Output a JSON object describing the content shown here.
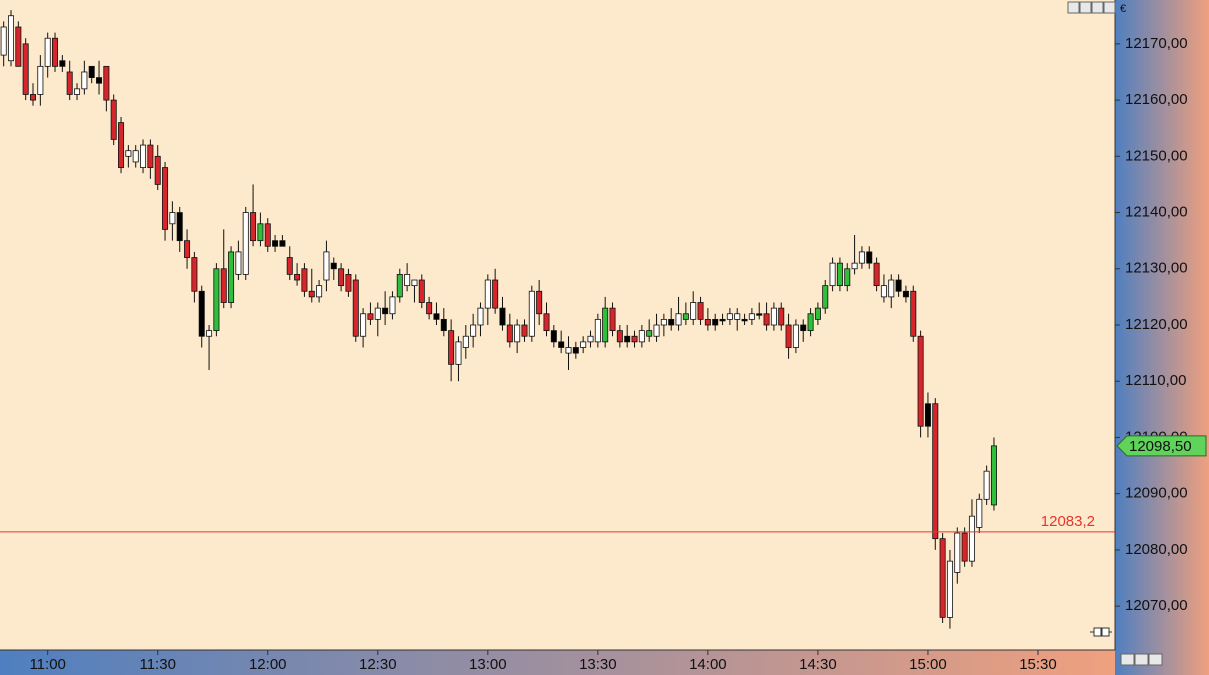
{
  "chart_data": {
    "type": "candlestick",
    "currency": "€",
    "x": [
      "10:48",
      "10:50",
      "10:52",
      "10:54",
      "10:56",
      "10:58",
      "11:00",
      "11:02",
      "11:04",
      "11:06",
      "11:08",
      "11:10",
      "11:12",
      "11:14",
      "11:16",
      "11:18",
      "11:20",
      "11:22",
      "11:24",
      "11:26",
      "11:28",
      "11:30",
      "11:32",
      "11:34",
      "11:36",
      "11:38",
      "11:40",
      "11:42",
      "11:44",
      "11:46",
      "11:48",
      "11:50",
      "11:52",
      "11:54",
      "11:56",
      "11:58",
      "12:00",
      "12:02",
      "12:04",
      "12:06",
      "12:08",
      "12:10",
      "12:12",
      "12:14",
      "12:16",
      "12:18",
      "12:20",
      "12:22",
      "12:24",
      "12:26",
      "12:28",
      "12:30",
      "12:32",
      "12:34",
      "12:36",
      "12:38",
      "12:40",
      "12:42",
      "12:44",
      "12:46",
      "12:48",
      "12:50",
      "12:52",
      "12:54",
      "12:56",
      "12:58",
      "13:00",
      "13:02",
      "13:04",
      "13:06",
      "13:08",
      "13:10",
      "13:12",
      "13:14",
      "13:16",
      "13:18",
      "13:20",
      "13:22",
      "13:24",
      "13:26",
      "13:28",
      "13:30",
      "13:32",
      "13:34",
      "13:36",
      "13:38",
      "13:40",
      "13:42",
      "13:44",
      "13:46",
      "13:48",
      "13:50",
      "13:52",
      "13:54",
      "13:56",
      "13:58",
      "14:00",
      "14:02",
      "14:04",
      "14:06",
      "14:08",
      "14:10",
      "14:12",
      "14:14",
      "14:16",
      "14:18",
      "14:20",
      "14:22",
      "14:24",
      "14:26",
      "14:28",
      "14:30",
      "14:32",
      "14:34",
      "14:36",
      "14:38",
      "14:40",
      "14:42",
      "14:44",
      "14:46",
      "14:48",
      "14:50",
      "14:52",
      "14:54",
      "14:56",
      "14:58",
      "15:00",
      "15:02",
      "15:04",
      "15:06",
      "15:08",
      "15:10",
      "15:12",
      "15:14",
      "15:16",
      "15:18"
    ],
    "ohlc": [
      [
        12168,
        12174,
        12166,
        12173
      ],
      [
        12167,
        12176,
        12166,
        12175
      ],
      [
        12173,
        12174,
        12166,
        12166
      ],
      [
        12170,
        12171,
        12160,
        12161
      ],
      [
        12161,
        12163,
        12159,
        12160
      ],
      [
        12161,
        12168,
        12159,
        12166
      ],
      [
        12166,
        12172,
        12164,
        12171
      ],
      [
        12171,
        12172,
        12165,
        12166
      ],
      [
        12166,
        12168,
        12165,
        12167
      ],
      [
        12165,
        12167,
        12160,
        12161
      ],
      [
        12161,
        12163,
        12160,
        12162
      ],
      [
        12162,
        12167,
        12161,
        12165
      ],
      [
        12166,
        12166,
        12163,
        12164
      ],
      [
        12164,
        12167,
        12161,
        12163
      ],
      [
        12166,
        12166,
        12158,
        12160
      ],
      [
        12160,
        12161,
        12152,
        12153
      ],
      [
        12156,
        12157,
        12147,
        12148
      ],
      [
        12150,
        12152,
        12148,
        12151
      ],
      [
        12151,
        12152,
        12148,
        12149
      ],
      [
        12148,
        12153,
        12147,
        12152
      ],
      [
        12152,
        12153,
        12146,
        12148
      ],
      [
        12150,
        12152,
        12144,
        12145
      ],
      [
        12148,
        12149,
        12135,
        12137
      ],
      [
        12138,
        12142,
        12135,
        12140
      ],
      [
        12140,
        12141,
        12133,
        12135
      ],
      [
        12135,
        12137,
        12130,
        12132
      ],
      [
        12132,
        12133,
        12124,
        12126
      ],
      [
        12126,
        12127,
        12116,
        12118
      ],
      [
        12118,
        12120,
        12112,
        12119
      ],
      [
        12119,
        12131,
        12118,
        12130
      ],
      [
        12130,
        12137,
        12123,
        12124
      ],
      [
        12124,
        12134,
        12123,
        12133
      ],
      [
        12133,
        12135,
        12128,
        12129
      ],
      [
        12129,
        12141,
        12128,
        12140
      ],
      [
        12140,
        12145,
        12134,
        12135
      ],
      [
        12135,
        12140,
        12134,
        12138
      ],
      [
        12138,
        12139,
        12133,
        12134
      ],
      [
        12134,
        12136,
        12133,
        12135
      ],
      [
        12135,
        12136,
        12134,
        12134
      ],
      [
        12132,
        12134,
        12128,
        12129
      ],
      [
        12129,
        12131,
        12127,
        12128
      ],
      [
        12130,
        12131,
        12125,
        12126
      ],
      [
        12126,
        12130,
        12124,
        12125
      ],
      [
        12125,
        12128,
        12124,
        12127
      ],
      [
        12128,
        12135,
        12126,
        12133
      ],
      [
        12131,
        12132,
        12128,
        12130
      ],
      [
        12130,
        12131,
        12126,
        12127
      ],
      [
        12129,
        12130,
        12125,
        12126
      ],
      [
        12128,
        12129,
        12117,
        12118
      ],
      [
        12118,
        12123,
        12116,
        12122
      ],
      [
        12122,
        12124,
        12120,
        12121
      ],
      [
        12121,
        12124,
        12118,
        12123
      ],
      [
        12123,
        12126,
        12120,
        12122
      ],
      [
        12122,
        12126,
        12121,
        12125
      ],
      [
        12125,
        12130,
        12124,
        12129
      ],
      [
        12129,
        12131,
        12126,
        12127
      ],
      [
        12127,
        12128,
        12124,
        12128
      ],
      [
        12128,
        12129,
        12123,
        12124
      ],
      [
        12124,
        12125,
        12121,
        12122
      ],
      [
        12122,
        12124,
        12120,
        12121
      ],
      [
        12121,
        12123,
        12118,
        12119
      ],
      [
        12119,
        12121,
        12110,
        12113
      ],
      [
        12113,
        12118,
        12110,
        12117
      ],
      [
        12116,
        12120,
        12114,
        12118
      ],
      [
        12118,
        12122,
        12116,
        12120
      ],
      [
        12120,
        12124,
        12118,
        12123
      ],
      [
        12123,
        12129,
        12120,
        12128
      ],
      [
        12128,
        12130,
        12122,
        12123
      ],
      [
        12123,
        12125,
        12119,
        12120
      ],
      [
        12120,
        12122,
        12116,
        12117
      ],
      [
        12117,
        12121,
        12115,
        12120
      ],
      [
        12120,
        12121,
        12117,
        12118
      ],
      [
        12118,
        12127,
        12117,
        12126
      ],
      [
        12126,
        12128,
        12120,
        12122
      ],
      [
        12122,
        12124,
        12118,
        12119
      ],
      [
        12119,
        12120,
        12116,
        12117
      ],
      [
        12117,
        12119,
        12115,
        12116
      ],
      [
        12116,
        12118,
        12112,
        12115
      ],
      [
        12115,
        12117,
        12114,
        12116
      ],
      [
        12116,
        12118,
        12115,
        12117
      ],
      [
        12117,
        12119,
        12116,
        12118
      ],
      [
        12117,
        12122,
        12116,
        12121
      ],
      [
        12117,
        12125,
        12116,
        12123
      ],
      [
        12123,
        12124,
        12118,
        12119
      ],
      [
        12119,
        12120,
        12116,
        12117
      ],
      [
        12117,
        12120,
        12116,
        12118
      ],
      [
        12118,
        12119,
        12116,
        12117
      ],
      [
        12117,
        12120,
        12116,
        12119
      ],
      [
        12119,
        12121,
        12117,
        12118
      ],
      [
        12118,
        12122,
        12117,
        12120
      ],
      [
        12120,
        12122,
        12118,
        12121
      ],
      [
        12121,
        12123,
        12119,
        12120
      ],
      [
        12120,
        12125,
        12119,
        12122
      ],
      [
        12122,
        12124,
        12120,
        12121
      ],
      [
        12121,
        12126,
        12120,
        12124
      ],
      [
        12124,
        12125,
        12120,
        12121
      ],
      [
        12121,
        12123,
        12119,
        12120
      ],
      [
        12120,
        12122,
        12119,
        12121
      ],
      [
        12121,
        12122,
        12120,
        12121
      ],
      [
        12121,
        12123,
        12120,
        12122
      ],
      [
        12122,
        12123,
        12119,
        12121
      ],
      [
        12121,
        12122,
        12120,
        12121
      ],
      [
        12121,
        12123,
        12120,
        12122
      ],
      [
        12122,
        12124,
        12121,
        12122
      ],
      [
        12122,
        12124,
        12119,
        12120
      ],
      [
        12120,
        12124,
        12119,
        12123
      ],
      [
        12123,
        12124,
        12119,
        12120
      ],
      [
        12120,
        12122,
        12114,
        12116
      ],
      [
        12116,
        12121,
        12115,
        12120
      ],
      [
        12120,
        12121,
        12117,
        12119
      ],
      [
        12119,
        12123,
        12118,
        12122
      ],
      [
        12121,
        12124,
        12120,
        12123
      ],
      [
        12123,
        12128,
        12122,
        12127
      ],
      [
        12127,
        12132,
        12126,
        12131
      ],
      [
        12131,
        12132,
        12126,
        12127
      ],
      [
        12127,
        12131,
        12126,
        12130
      ],
      [
        12130,
        12136,
        12129,
        12131
      ],
      [
        12131,
        12134,
        12130,
        12133
      ],
      [
        12133,
        12134,
        12130,
        12131
      ],
      [
        12131,
        12132,
        12126,
        12127
      ],
      [
        12127,
        12129,
        12124,
        12125
      ],
      [
        12125,
        12129,
        12123,
        12128
      ],
      [
        12128,
        12129,
        12125,
        12126
      ],
      [
        12126,
        12127,
        12124,
        12125
      ],
      [
        12126,
        12127,
        12117,
        12118
      ],
      [
        12118,
        12119,
        12100,
        12102
      ],
      [
        12102,
        12108,
        12100,
        12106
      ],
      [
        12106,
        12107,
        12080,
        12082
      ],
      [
        12082,
        12083,
        12067,
        12068
      ],
      [
        12068,
        12080,
        12066,
        12078
      ],
      [
        12076,
        12084,
        12074,
        12083
      ],
      [
        12083,
        12084,
        12077,
        12078
      ],
      [
        12078,
        12089,
        12077,
        12086
      ],
      [
        12084,
        12090,
        12083,
        12089
      ],
      [
        12089,
        12095,
        12088,
        12094
      ],
      [
        12088,
        12100,
        12087,
        12098.5
      ]
    ],
    "palette": [
      "#000000",
      "#d7262b",
      "#2fbf3a",
      "#ffffff"
    ],
    "color_index": [
      3,
      3,
      1,
      1,
      1,
      3,
      3,
      1,
      0,
      1,
      3,
      3,
      0,
      0,
      1,
      1,
      1,
      3,
      3,
      3,
      1,
      1,
      1,
      3,
      0,
      1,
      1,
      0,
      3,
      2,
      1,
      2,
      3,
      3,
      1,
      2,
      1,
      0,
      0,
      1,
      1,
      1,
      1,
      3,
      3,
      0,
      1,
      1,
      1,
      3,
      1,
      3,
      0,
      3,
      2,
      3,
      3,
      1,
      1,
      0,
      0,
      1,
      3,
      3,
      3,
      3,
      3,
      1,
      0,
      1,
      3,
      1,
      3,
      1,
      1,
      0,
      0,
      3,
      0,
      3,
      3,
      3,
      2,
      1,
      1,
      0,
      1,
      3,
      2,
      3,
      3,
      0,
      3,
      2,
      3,
      1,
      1,
      0,
      0,
      3,
      3,
      0,
      3,
      0,
      1,
      3,
      1,
      1,
      3,
      0,
      2,
      2,
      2,
      3,
      2,
      2,
      3,
      3,
      0,
      1,
      3,
      3,
      0,
      0,
      1,
      1,
      0,
      1,
      1,
      3,
      3,
      1,
      3,
      3,
      3,
      2
    ],
    "xlim": [
      "10:47",
      "15:51"
    ],
    "xticks": [
      "11:00",
      "11:30",
      "12:00",
      "12:30",
      "13:00",
      "13:30",
      "14:00",
      "14:30",
      "15:00",
      "15:30"
    ],
    "ylim": [
      12062.2,
      12177.8
    ],
    "yticks": [
      {
        "value": 12070,
        "label": "12070,00"
      },
      {
        "value": 12080,
        "label": "12080,00"
      },
      {
        "value": 12090,
        "label": "12090,00"
      },
      {
        "value": 12100,
        "label": "12100,00"
      },
      {
        "value": 12110,
        "label": "12110,00"
      },
      {
        "value": 12120,
        "label": "12120,00"
      },
      {
        "value": 12130,
        "label": "12130,00"
      },
      {
        "value": 12140,
        "label": "12140,00"
      },
      {
        "value": 12150,
        "label": "12150,00"
      },
      {
        "value": 12160,
        "label": "12160,00"
      },
      {
        "value": 12170,
        "label": "12170,00"
      }
    ],
    "reference_line": {
      "value": 12083.2,
      "label": "12083,2",
      "color": "#e8342c"
    },
    "last_price": {
      "value": 12098.5,
      "label": "12098,50",
      "color": "#5fd35a"
    }
  }
}
